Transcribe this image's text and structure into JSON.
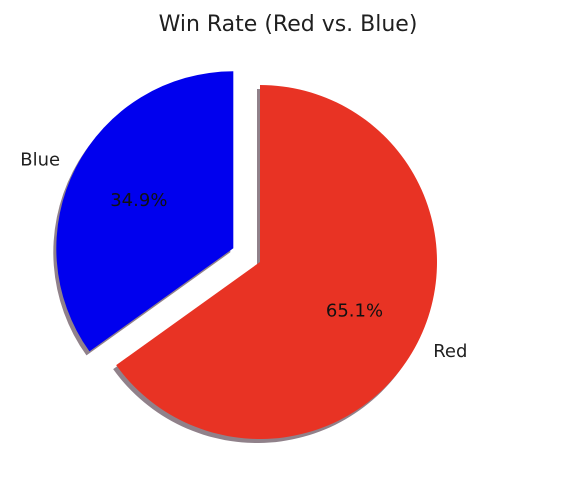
{
  "chart_data": {
    "type": "pie",
    "title": "Win Rate (Red vs. Blue)",
    "categories": [
      "Red",
      "Blue"
    ],
    "values": [
      65.1,
      34.9
    ],
    "percent_labels": [
      "65.1%",
      "34.9%"
    ],
    "colors": [
      "#e83324",
      "#0000ee"
    ],
    "exploded": [
      false,
      true
    ],
    "shadow": true,
    "start_angle_deg": 90,
    "direction": "clockwise"
  }
}
